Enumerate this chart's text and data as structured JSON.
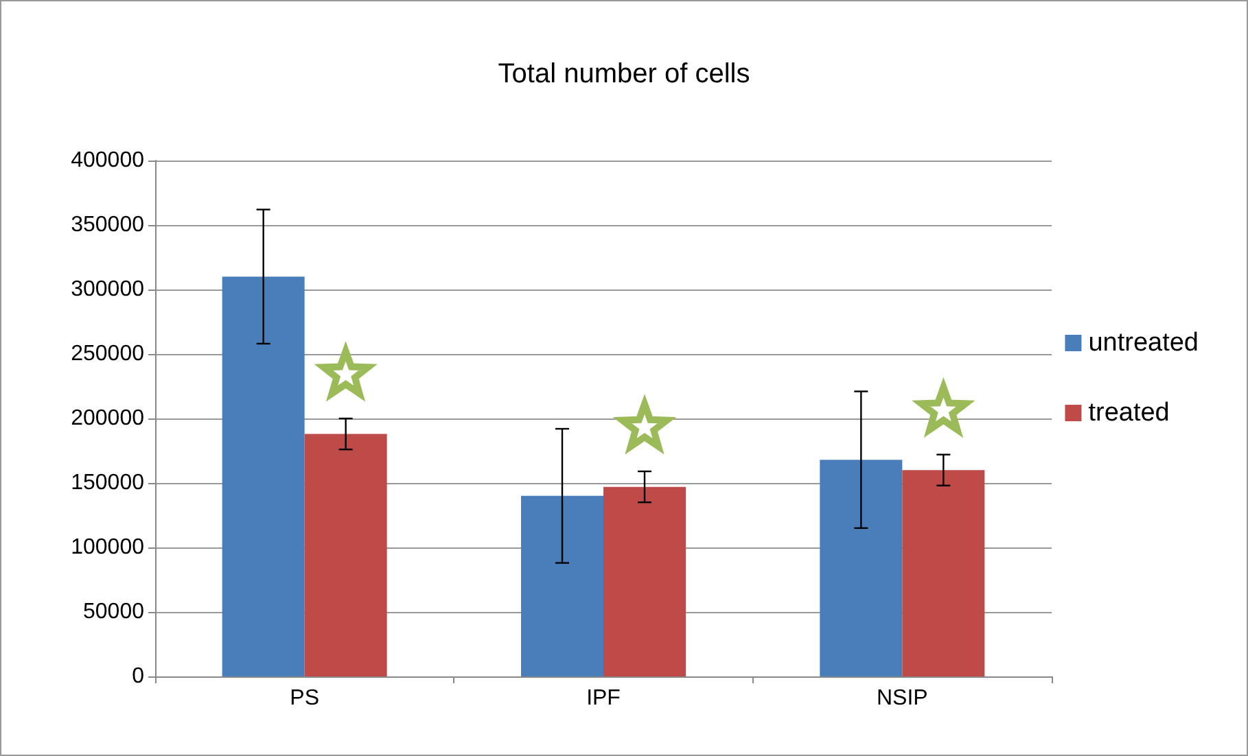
{
  "chart_data": {
    "type": "bar",
    "title": "Total number of cells",
    "categories": [
      "PS",
      "IPF",
      "NSIP"
    ],
    "series": [
      {
        "name": "untreated",
        "color": "#4a7ebb",
        "values": [
          310000,
          140000,
          168000
        ],
        "errors": [
          52000,
          52000,
          53000
        ]
      },
      {
        "name": "treated",
        "color": "#be4b48",
        "values": [
          188000,
          147000,
          160000
        ],
        "errors": [
          12000,
          12000,
          12000
        ]
      }
    ],
    "ylim": [
      0,
      400000
    ],
    "yticks": [
      0,
      50000,
      100000,
      150000,
      200000,
      250000,
      300000,
      350000,
      400000
    ],
    "grid": "y",
    "legend": "right"
  }
}
